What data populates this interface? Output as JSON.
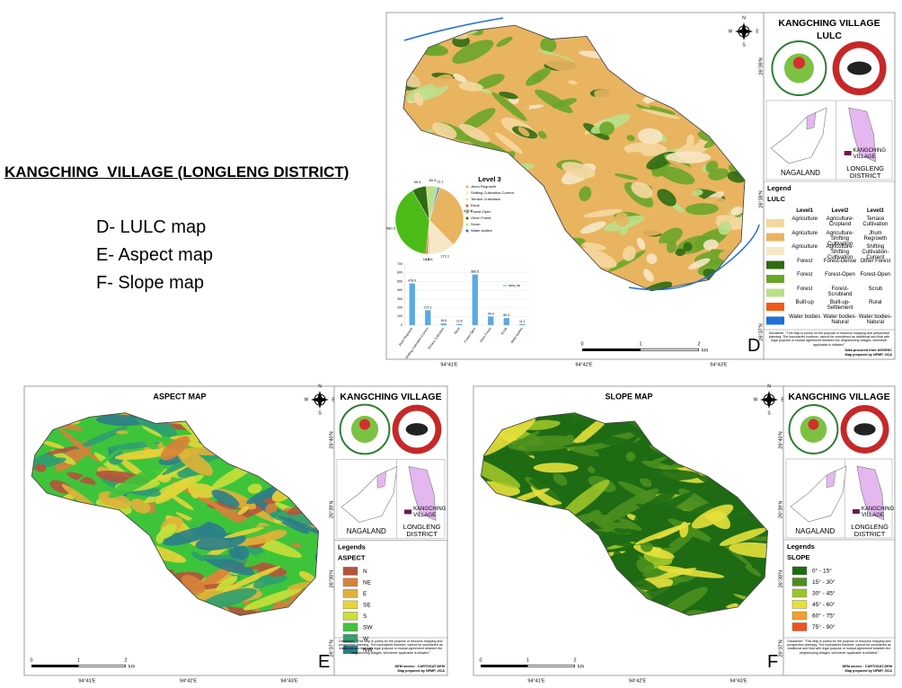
{
  "slide": {
    "title": "KANGCHING  VILLAGE (LONGLENG DISTRICT)",
    "items": [
      "D- LULC map",
      "E- Aspect map",
      "F- Slope map"
    ]
  },
  "lulc_map": {
    "title": "KANGCHING VILLAGE",
    "subtitle": "LULC",
    "letter": "D",
    "compass": [
      "N",
      "E",
      "S",
      "W"
    ],
    "state": "NAGALAND",
    "district": "LONGLENG DISTRICT",
    "village": "KANGCHING VILLAGE",
    "legend_title": "Legend",
    "legend_subtitle": "LULC",
    "columns": [
      "Level1",
      "Level2",
      "Level3"
    ],
    "rows": [
      {
        "color": "#f5d79e",
        "cells": [
          "Agriculture",
          "Agriculture-Cropland",
          "Terrace Cultivation"
        ]
      },
      {
        "color": "#e8b460",
        "cells": [
          "Agriculture",
          "Agriculture-Shifting Cultivation",
          "Jhum Regrowth"
        ]
      },
      {
        "color": "#f7e7c4",
        "cells": [
          "Agriculture",
          "Agriculture-Shifting Cultivation",
          "Shifting Cultivation-Current"
        ]
      },
      {
        "color": "#2f6b12",
        "cells": [
          "Forest",
          "Forest-Dense",
          "Other Forest"
        ]
      },
      {
        "color": "#6aa52a",
        "cells": [
          "Forest",
          "Forest-Open",
          "Forest-Open"
        ]
      },
      {
        "color": "#b9e08a",
        "cells": [
          "Forest",
          "Forest-Scrubland",
          "Scrub"
        ]
      },
      {
        "color": "#f05a16",
        "cells": [
          "Built-up",
          "Built-up-Settlement",
          "Rural"
        ]
      },
      {
        "color": "#1f6fd6",
        "cells": [
          "Water bodies",
          "Water bodies-Natural",
          "Water bodies-Natural"
        ]
      }
    ],
    "disclaimer": "Disclaimer: \"This Map is purely for the purpose of resource mapping and perspective planning. The boundaries however, cannot be considered as traditional and final with legal purpose or mutual agreement between the neighbouring villages, whichever applicable is initiated.\"",
    "credits": [
      "Data procured from NGSRSC",
      "Map prepared by NFMP, JICA"
    ],
    "lat_labels": [
      "26°39'N",
      "26°38'N",
      "26°37'N"
    ],
    "lon_labels": [
      "94°41'E",
      "94°42'E",
      "94°43'E"
    ],
    "scale": [
      "0",
      "1",
      "2",
      "km"
    ]
  },
  "chart_data": {
    "type": "bar",
    "title": "Level 3",
    "series_name": "area_ha",
    "color": "#5aa9e6",
    "categories": [
      "Jhum Regrowth",
      "Shifting Cultivation-Current",
      "Terrace Cultivation",
      "Rural",
      "Forest-Open",
      "Other Forest",
      "Scrub",
      "Water-bodies"
    ],
    "values": [
      478.9,
      171.1,
      18.6,
      12.6,
      580.5,
      99.4,
      80.4,
      11.1
    ],
    "pie_colors": [
      "#e8b460",
      "#f7e7c4",
      "#f5d79e",
      "#f05a16",
      "#4cbb17",
      "#2f6b12",
      "#b9e08a",
      "#1f6fd6"
    ],
    "ylim": [
      0,
      700
    ],
    "yticks": [
      0,
      100,
      200,
      300,
      400,
      500,
      600,
      700
    ]
  },
  "aspect_map": {
    "map_title": "ASPECT MAP",
    "title": "KANGCHING VILLAGE",
    "letter": "E",
    "compass": [
      "N",
      "E",
      "S",
      "W"
    ],
    "state": "NAGALAND",
    "district": "LONGLENG DISTRICT",
    "village": "KANGCHING VILLAGE",
    "legend_title": "Legends",
    "legend_subtitle": "ASPECT",
    "classes": [
      {
        "label": "N",
        "color": "#b5533c"
      },
      {
        "label": "NE",
        "color": "#d9813a"
      },
      {
        "label": "E",
        "color": "#e0b13a"
      },
      {
        "label": "SE",
        "color": "#e5d43a"
      },
      {
        "label": "S",
        "color": "#c8e03a"
      },
      {
        "label": "SW",
        "color": "#3ec43a"
      },
      {
        "label": "W",
        "color": "#2ea070"
      },
      {
        "label": "NW",
        "color": "#2a7e8a"
      }
    ],
    "disclaimer": "Disclaimer: \"This Map is purely for the purpose of resource mapping and perspective planning. The boundaries however, cannot be considered as traditional and final with legal purpose or mutual agreement between the neighbouring villages, whichever applicable is initiated.\"",
    "credits": [
      "DEM source : CARTOSAT-DEM",
      "Map prepared by NFMP, JICA"
    ],
    "lat_labels": [
      "26°40'N",
      "26°39'N",
      "26°38'N",
      "26°37'N"
    ],
    "lon_labels": [
      "94°41'E",
      "94°42'E",
      "94°43'E"
    ],
    "scale": [
      "0",
      "1",
      "2",
      "km"
    ]
  },
  "slope_map": {
    "map_title": "SLOPE MAP",
    "title": "KANGCHING VILLAGE",
    "letter": "F",
    "compass": [
      "N",
      "E",
      "S",
      "W"
    ],
    "state": "NAGALAND",
    "district": "LONGLENG DISTRICT",
    "village": "KANGCHING VILLAGE",
    "legend_title": "Legends",
    "legend_subtitle": "SLOPE",
    "classes": [
      {
        "label": "0° - 15°",
        "color": "#1e6b14"
      },
      {
        "label": "15° - 30°",
        "color": "#4a8f1e"
      },
      {
        "label": "30° - 45°",
        "color": "#9cc428"
      },
      {
        "label": "45° - 60°",
        "color": "#e6e03a"
      },
      {
        "label": "60° - 75°",
        "color": "#f0a030"
      },
      {
        "label": "75° - 90°",
        "color": "#f05020"
      }
    ],
    "disclaimer": "Disclaimer: \"This Map is purely for the purpose of resource mapping and perspective planning. The boundaries however, cannot be considered as traditional and final with legal purpose or mutual agreement between the neighbouring villages, whichever applicable is initiated.\"",
    "credits": [
      "DEM source : CARTOSAT-DEM",
      "Map prepared by NFMP, JICA"
    ],
    "lat_labels": [
      "26°40'N",
      "26°39'N",
      "26°38'N",
      "26°37'N"
    ],
    "lon_labels": [
      "94°41'E",
      "94°42'E",
      "94°43'E"
    ],
    "scale": [
      "0",
      "1",
      "2",
      "km"
    ]
  }
}
